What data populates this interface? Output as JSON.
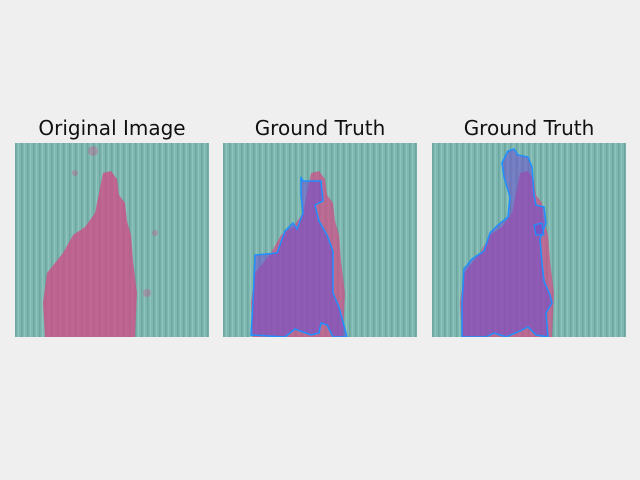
{
  "figure": {
    "panels": [
      {
        "title": "Original Image",
        "image": "aerial-field-crop-damage",
        "overlay": "none"
      },
      {
        "title": "Ground Truth",
        "image": "aerial-field-crop-damage",
        "overlay": "segmentation-mask"
      },
      {
        "title": "Ground Truth",
        "image": "aerial-field-crop-damage",
        "overlay": "segmentation-mask"
      }
    ],
    "colors": {
      "background": "#efefef",
      "field": "#7fb8b0",
      "damage": "#d24a86",
      "mask_fill": "#6a4fd0",
      "mask_edge": "#1e90ff"
    }
  }
}
